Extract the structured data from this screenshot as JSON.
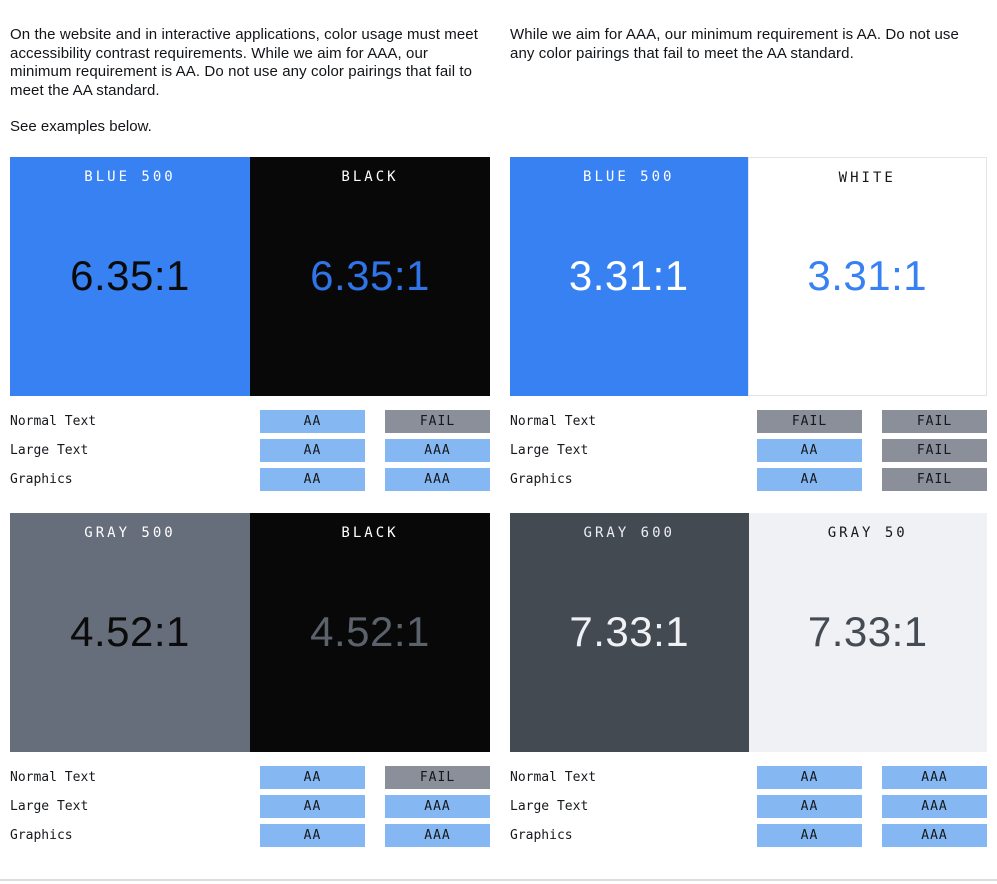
{
  "colors": {
    "blue_500": "#3781F3",
    "black": "#080808",
    "white": "#FFFFFF",
    "gray_500": "#666D7B",
    "gray_600": "#434A52",
    "gray_50": "#EFF1F4",
    "badge_pass_bg": "#85B8F2",
    "badge_fail_bg": "#8A8F99",
    "badge_text": "#15181C",
    "divider": "#DCDCDC"
  },
  "intro": {
    "left_paragraph": "On the website and in interactive applications, color usage must meet accessibility contrast requirements. While we aim for AAA, our minimum requirement is AA. Do not use any color pairings that fail to meet the AA standard.",
    "left_note": "See examples below.",
    "right_paragraph": "While we aim for AAA, our minimum requirement is AA. Do not use any color pairings that fail to meet the AA standard."
  },
  "cards": [
    {
      "pair": "Blue 500 / Black",
      "left": {
        "label": "BLUE 500",
        "bg": "#3781F3",
        "label_color": "#FFFFFF",
        "ratio": "6.35:1",
        "ratio_color": "#0B0B0B",
        "bordered": "false"
      },
      "right": {
        "label": "BLACK",
        "bg": "#080808",
        "label_color": "#FFFFFF",
        "ratio": "6.35:1",
        "ratio_color": "#2F74E8",
        "bordered": "false"
      },
      "rows": [
        {
          "label": "Normal Text",
          "badges": [
            {
              "text": "AA",
              "status": "pass"
            },
            {
              "text": "FAIL",
              "status": "fail"
            }
          ]
        },
        {
          "label": "Large Text",
          "badges": [
            {
              "text": "AA",
              "status": "pass"
            },
            {
              "text": "AAA",
              "status": "pass"
            }
          ]
        },
        {
          "label": "Graphics",
          "badges": [
            {
              "text": "AA",
              "status": "pass"
            },
            {
              "text": "AAA",
              "status": "pass"
            }
          ]
        }
      ]
    },
    {
      "pair": "Blue 500 / White",
      "left": {
        "label": "BLUE 500",
        "bg": "#3781F3",
        "label_color": "#FFFFFF",
        "ratio": "3.31:1",
        "ratio_color": "#FFFFFF",
        "bordered": "false"
      },
      "right": {
        "label": "WHITE",
        "bg": "#FFFFFF",
        "label_color": "#15181C",
        "ratio": "3.31:1",
        "ratio_color": "#3781F3",
        "bordered": "true"
      },
      "rows": [
        {
          "label": "Normal Text",
          "badges": [
            {
              "text": "FAIL",
              "status": "fail"
            },
            {
              "text": "FAIL",
              "status": "fail"
            }
          ]
        },
        {
          "label": "Large Text",
          "badges": [
            {
              "text": "AA",
              "status": "pass"
            },
            {
              "text": "FAIL",
              "status": "fail"
            }
          ]
        },
        {
          "label": "Graphics",
          "badges": [
            {
              "text": "AA",
              "status": "pass"
            },
            {
              "text": "FAIL",
              "status": "fail"
            }
          ]
        }
      ]
    },
    {
      "pair": "Gray 500 / Black",
      "left": {
        "label": "GRAY 500",
        "bg": "#666D7B",
        "label_color": "#FFFFFF",
        "ratio": "4.52:1",
        "ratio_color": "#0B0B0B",
        "bordered": "false"
      },
      "right": {
        "label": "BLACK",
        "bg": "#080808",
        "label_color": "#FFFFFF",
        "ratio": "4.52:1",
        "ratio_color": "#5C626C",
        "bordered": "false"
      },
      "rows": [
        {
          "label": "Normal Text",
          "badges": [
            {
              "text": "AA",
              "status": "pass"
            },
            {
              "text": "FAIL",
              "status": "fail"
            }
          ]
        },
        {
          "label": "Large Text",
          "badges": [
            {
              "text": "AA",
              "status": "pass"
            },
            {
              "text": "AAA",
              "status": "pass"
            }
          ]
        },
        {
          "label": "Graphics",
          "badges": [
            {
              "text": "AA",
              "status": "pass"
            },
            {
              "text": "AAA",
              "status": "pass"
            }
          ]
        }
      ]
    },
    {
      "pair": "Gray 600 / Gray 50",
      "left": {
        "label": "GRAY 600",
        "bg": "#434A52",
        "label_color": "#EDEFF3",
        "ratio": "7.33:1",
        "ratio_color": "#EFF1F4",
        "bordered": "false"
      },
      "right": {
        "label": "GRAY 50",
        "bg": "#EFF1F4",
        "label_color": "#15181C",
        "ratio": "7.33:1",
        "ratio_color": "#454B53",
        "bordered": "false"
      },
      "rows": [
        {
          "label": "Normal Text",
          "badges": [
            {
              "text": "AA",
              "status": "pass"
            },
            {
              "text": "AAA",
              "status": "pass"
            }
          ]
        },
        {
          "label": "Large Text",
          "badges": [
            {
              "text": "AA",
              "status": "pass"
            },
            {
              "text": "AAA",
              "status": "pass"
            }
          ]
        },
        {
          "label": "Graphics",
          "badges": [
            {
              "text": "AA",
              "status": "pass"
            },
            {
              "text": "AAA",
              "status": "pass"
            }
          ]
        }
      ]
    }
  ]
}
